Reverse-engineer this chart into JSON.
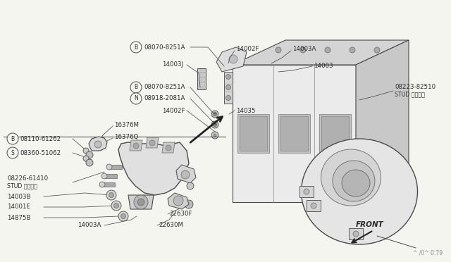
{
  "bg_color": "#f5f5f0",
  "line_color": "#4a4a4a",
  "text_color": "#2a2a2a",
  "watermark": "^ /0^ 0:79",
  "labels": {
    "B_08070_upper": "08070-8251A",
    "14003J": "14003J",
    "B_08070_mid": "08070-8251A",
    "N_08918": "08918-2081A",
    "14002F_left": "14002F",
    "14002F_top": "14002F",
    "14003A_top": "14003A",
    "14003": "14003",
    "14035": "14035",
    "stud_upper": "08223-82510",
    "stud_upper2": "STUD スタッド",
    "B_08110": "08110-61262",
    "16376M": "16376M",
    "16376Q": "16376Q",
    "S_08360": "08360-51062",
    "stud_lower": "08226-61410",
    "stud_lower2": "STUD スタッド",
    "14003B": "14003B",
    "14001E": "14001E",
    "14875B": "14875B",
    "14003A_bot": "14003A",
    "22630F": "22630F",
    "22630M": "22630M",
    "FRONT": "FRONT"
  }
}
